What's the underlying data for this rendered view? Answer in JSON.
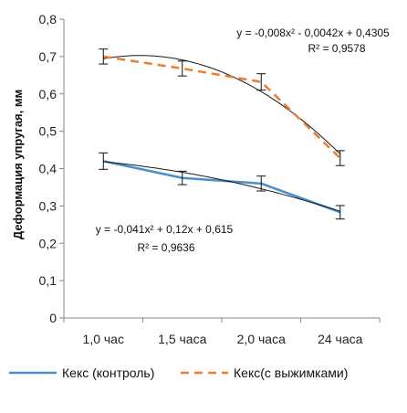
{
  "chart_data": {
    "type": "line",
    "ylabel": "Деформация упругая, мм",
    "categories": [
      "1,0 час",
      "1,5 часа",
      "2,0 часа",
      "24 часа"
    ],
    "ylim": [
      0,
      0.8
    ],
    "yticks": [
      "0",
      "0,1",
      "0,2",
      "0,3",
      "0,4",
      "0,5",
      "0,6",
      "0,7",
      "0,8"
    ],
    "grid": false,
    "legend_position": "bottom",
    "series": [
      {
        "name": "Кекс (контроль)",
        "values": [
          0.42,
          0.375,
          0.36,
          0.283
        ],
        "errors": [
          0.022,
          0.018,
          0.02,
          0.018
        ],
        "color": "#4a8fc9",
        "dash": "solid",
        "trend": {
          "a": -0.041,
          "b": 0.12,
          "c": 0.615
        },
        "equation": "y = -0,041x² + 0,12x + 0,615",
        "r2": "R² = 0,9636"
      },
      {
        "name": "Кекс(с выжимками)",
        "values": [
          0.7,
          0.668,
          0.632,
          0.428
        ],
        "errors": [
          0.02,
          0.02,
          0.022,
          0.02
        ],
        "color": "#ed7d31",
        "dash": "dashed",
        "trend": {
          "a": -0.008,
          "b": -0.0042,
          "c": 0.4305
        },
        "equation": "y = -0,008x² - 0,0042x + 0,4305",
        "r2": "R² = 0,9578"
      }
    ]
  }
}
